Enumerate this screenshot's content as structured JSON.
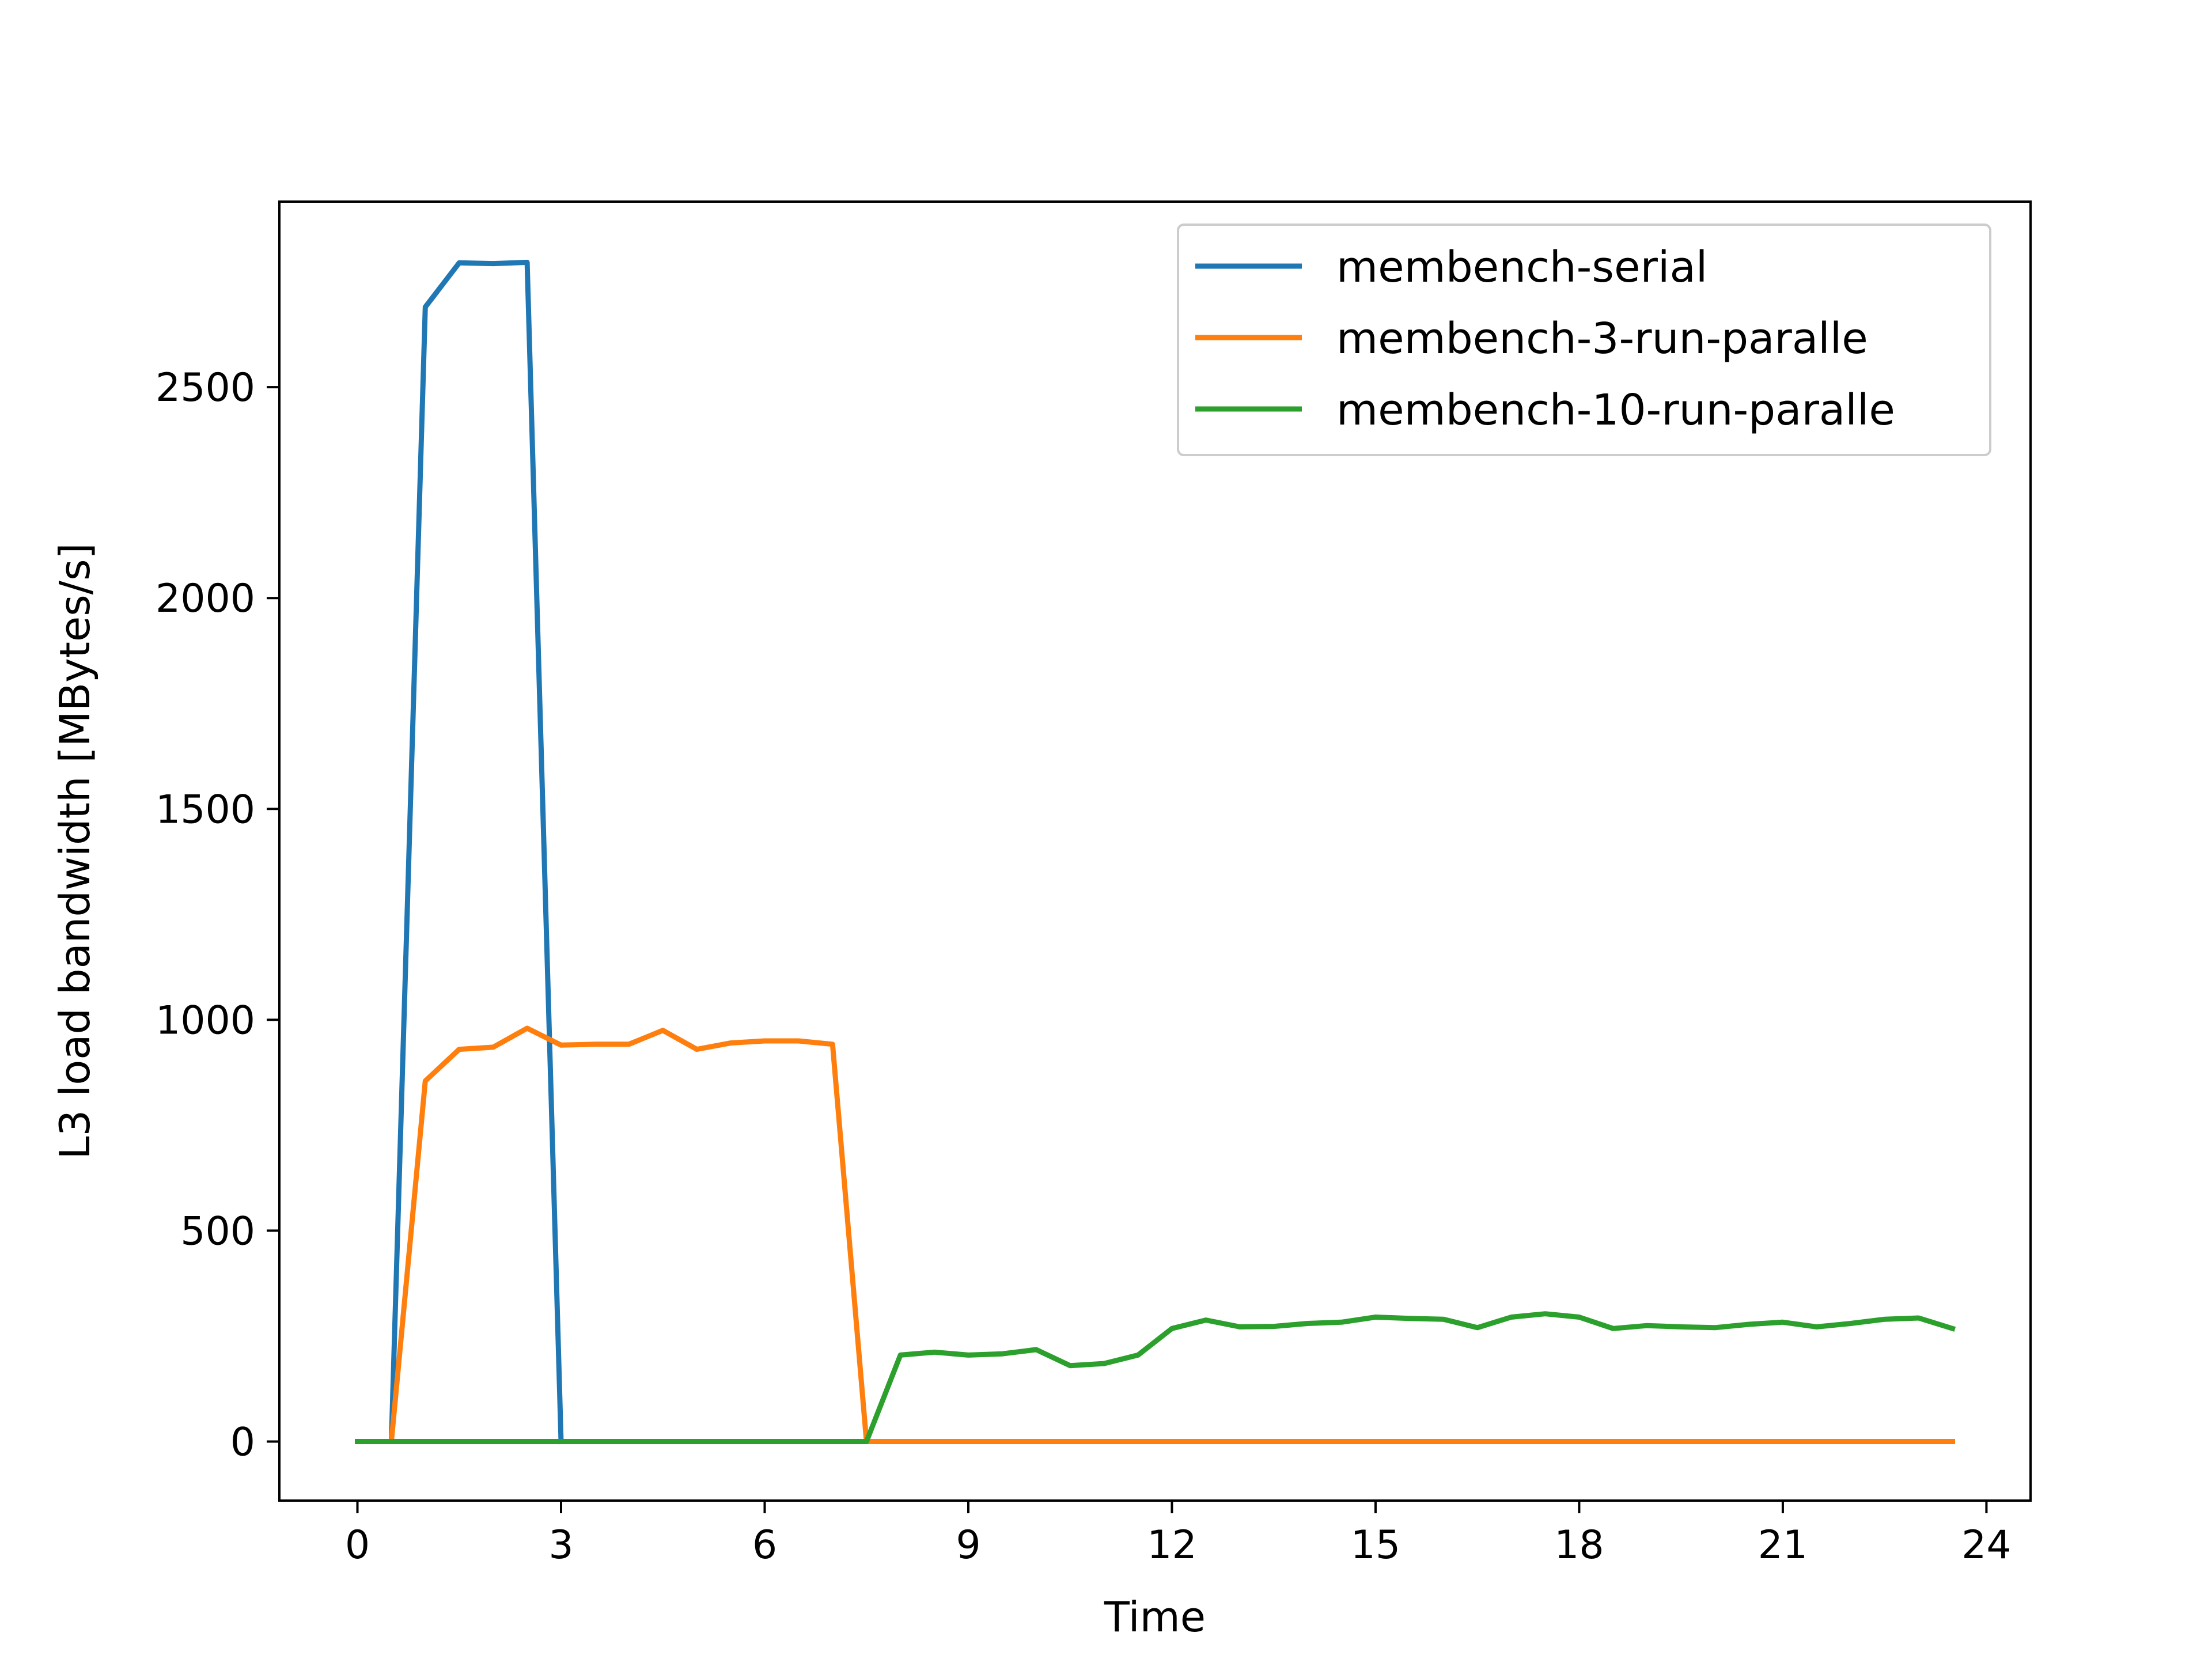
{
  "chart_data": {
    "type": "line",
    "title": "",
    "xlabel": "Time",
    "ylabel": "L3 load bandwidth [MBytes/s]",
    "xlim": [
      -1.15,
      24.65
    ],
    "ylim": [
      -140,
      2940
    ],
    "x_ticks": [
      0,
      3,
      6,
      9,
      12,
      15,
      18,
      21,
      24
    ],
    "y_ticks": [
      0,
      500,
      1000,
      1500,
      2000,
      2500
    ],
    "x_tick_labels": [
      "0",
      "3",
      "6",
      "9",
      "12",
      "15",
      "18",
      "21",
      "24"
    ],
    "y_tick_labels": [
      "0",
      "500",
      "1000",
      "1500",
      "2000",
      "2500"
    ],
    "grid": false,
    "legend": {
      "position": "top-right"
    },
    "series": [
      {
        "name": "membench-serial",
        "color": "#1f77b4",
        "points": [
          [
            0,
            0
          ],
          [
            0.5,
            0
          ],
          [
            1.0,
            2690
          ],
          [
            1.5,
            2795
          ],
          [
            2.0,
            2793
          ],
          [
            2.5,
            2796
          ],
          [
            3.0,
            0
          ]
        ]
      },
      {
        "name": "membench-3-run-paralle",
        "color": "#ff7f0e",
        "points": [
          [
            0,
            0
          ],
          [
            0.5,
            0
          ],
          [
            1.0,
            855
          ],
          [
            1.5,
            930
          ],
          [
            2.0,
            935
          ],
          [
            2.5,
            980
          ],
          [
            3.0,
            940
          ],
          [
            3.5,
            942
          ],
          [
            4.0,
            942
          ],
          [
            4.5,
            975
          ],
          [
            5.0,
            930
          ],
          [
            5.5,
            945
          ],
          [
            6.0,
            950
          ],
          [
            6.5,
            950
          ],
          [
            7.0,
            942
          ],
          [
            7.5,
            0
          ],
          [
            8.0,
            0
          ],
          [
            9.0,
            0
          ],
          [
            10.0,
            0
          ],
          [
            11.0,
            0
          ],
          [
            12.0,
            0
          ],
          [
            13.0,
            0
          ],
          [
            14.0,
            0
          ],
          [
            15.0,
            0
          ],
          [
            16.0,
            0
          ],
          [
            17.0,
            0
          ],
          [
            18.0,
            0
          ],
          [
            19.0,
            0
          ],
          [
            20.0,
            0
          ],
          [
            21.0,
            0
          ],
          [
            22.0,
            0
          ],
          [
            23.0,
            0
          ],
          [
            23.5,
            0
          ]
        ]
      },
      {
        "name": "membench-10-run-paralle",
        "color": "#2ca02c",
        "points": [
          [
            0,
            0
          ],
          [
            0.5,
            0
          ],
          [
            1.0,
            0
          ],
          [
            2.0,
            0
          ],
          [
            3.0,
            0
          ],
          [
            4.0,
            0
          ],
          [
            5.0,
            0
          ],
          [
            6.0,
            0
          ],
          [
            7.0,
            0
          ],
          [
            7.5,
            0
          ],
          [
            8.0,
            205
          ],
          [
            8.5,
            212
          ],
          [
            9.0,
            205
          ],
          [
            9.5,
            208
          ],
          [
            10.0,
            218
          ],
          [
            10.5,
            180
          ],
          [
            11.0,
            185
          ],
          [
            11.5,
            205
          ],
          [
            12.0,
            268
          ],
          [
            12.5,
            288
          ],
          [
            13.0,
            272
          ],
          [
            13.5,
            273
          ],
          [
            14.0,
            280
          ],
          [
            14.5,
            283
          ],
          [
            15.0,
            295
          ],
          [
            15.5,
            292
          ],
          [
            16.0,
            290
          ],
          [
            16.5,
            270
          ],
          [
            17.0,
            295
          ],
          [
            17.5,
            303
          ],
          [
            18.0,
            295
          ],
          [
            18.5,
            268
          ],
          [
            19.0,
            275
          ],
          [
            19.5,
            272
          ],
          [
            20.0,
            270
          ],
          [
            20.5,
            278
          ],
          [
            21.0,
            283
          ],
          [
            21.5,
            272
          ],
          [
            22.0,
            280
          ],
          [
            22.5,
            290
          ],
          [
            23.0,
            293
          ],
          [
            23.5,
            268
          ]
        ]
      }
    ]
  }
}
